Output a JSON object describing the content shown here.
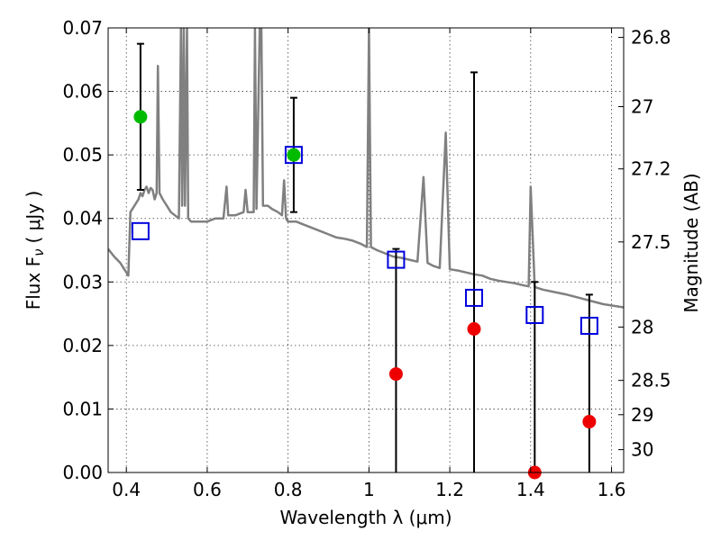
{
  "chart_data": {
    "type": "scatter",
    "xlabel": "Wavelength  λ (μm)",
    "ylabel": "Flux  F",
    "ylabel_sub": "ν",
    "ylabel_unit": "( μJy )",
    "y2label": "Magnitude (AB)",
    "xlim": [
      0.355,
      1.63
    ],
    "ylim": [
      0.0,
      0.07
    ],
    "grid": true,
    "x_ticks": [
      0.4,
      0.6,
      0.8,
      1.0,
      1.2,
      1.4,
      1.6
    ],
    "x_tick_labels": [
      "0.4",
      "0.6",
      "0.8",
      "1",
      "1.2",
      "1.4",
      "1.6"
    ],
    "y_ticks": [
      0.0,
      0.01,
      0.02,
      0.03,
      0.04,
      0.05,
      0.06,
      0.07
    ],
    "y_tick_labels": [
      "0.00",
      "0.01",
      "0.02",
      "0.03",
      "0.04",
      "0.05",
      "0.06",
      "0.07"
    ],
    "y2_ticks": [
      {
        "label": "26.8",
        "flux": 0.0685
      },
      {
        "label": "27",
        "flux": 0.0576
      },
      {
        "label": "27.2",
        "flux": 0.0478
      },
      {
        "label": "27.5",
        "flux": 0.0363
      },
      {
        "label": "28",
        "flux": 0.0229
      },
      {
        "label": "28.5",
        "flux": 0.0145
      },
      {
        "label": "29",
        "flux": 0.0091
      },
      {
        "label": "30",
        "flux": 0.0036
      }
    ],
    "colors": {
      "model": "#808080",
      "detection": "#00bb00",
      "upper_limit": "#ee0000",
      "model_band": "#0000dd",
      "errorbar": "#000000"
    },
    "series": [
      {
        "marker": "line",
        "points": [
          [
            0.355,
            0.0352
          ],
          [
            0.37,
            0.034
          ],
          [
            0.385,
            0.033
          ],
          [
            0.395,
            0.032
          ],
          [
            0.4,
            0.0315
          ],
          [
            0.405,
            0.031
          ],
          [
            0.41,
            0.041
          ],
          [
            0.42,
            0.042
          ],
          [
            0.43,
            0.043
          ],
          [
            0.435,
            0.044
          ],
          [
            0.44,
            0.0435
          ],
          [
            0.445,
            0.0445
          ],
          [
            0.45,
            0.045
          ],
          [
            0.455,
            0.044
          ],
          [
            0.46,
            0.0448
          ],
          [
            0.465,
            0.0445
          ],
          [
            0.47,
            0.043
          ],
          [
            0.475,
            0.044
          ],
          [
            0.478,
            0.064
          ],
          [
            0.482,
            0.044
          ],
          [
            0.49,
            0.043
          ],
          [
            0.5,
            0.042
          ],
          [
            0.51,
            0.041
          ],
          [
            0.52,
            0.0405
          ],
          [
            0.53,
            0.04
          ],
          [
            0.535,
            0.07
          ],
          [
            0.538,
            0.042
          ],
          [
            0.542,
            0.07
          ],
          [
            0.545,
            0.042
          ],
          [
            0.55,
            0.07
          ],
          [
            0.553,
            0.04
          ],
          [
            0.56,
            0.0395
          ],
          [
            0.58,
            0.0395
          ],
          [
            0.6,
            0.0395
          ],
          [
            0.62,
            0.04
          ],
          [
            0.64,
            0.04
          ],
          [
            0.648,
            0.045
          ],
          [
            0.652,
            0.0405
          ],
          [
            0.67,
            0.0405
          ],
          [
            0.69,
            0.041
          ],
          [
            0.695,
            0.0445
          ],
          [
            0.7,
            0.041
          ],
          [
            0.715,
            0.041
          ],
          [
            0.718,
            0.07
          ],
          [
            0.722,
            0.0415
          ],
          [
            0.73,
            0.07
          ],
          [
            0.734,
            0.07
          ],
          [
            0.738,
            0.042
          ],
          [
            0.75,
            0.042
          ],
          [
            0.76,
            0.0415
          ],
          [
            0.775,
            0.041
          ],
          [
            0.785,
            0.0405
          ],
          [
            0.79,
            0.046
          ],
          [
            0.795,
            0.04
          ],
          [
            0.8,
            0.0395
          ],
          [
            0.82,
            0.0395
          ],
          [
            0.84,
            0.039
          ],
          [
            0.86,
            0.0385
          ],
          [
            0.88,
            0.038
          ],
          [
            0.9,
            0.0375
          ],
          [
            0.92,
            0.037
          ],
          [
            0.94,
            0.0368
          ],
          [
            0.96,
            0.0365
          ],
          [
            0.98,
            0.036
          ],
          [
            0.995,
            0.0355
          ],
          [
            1.0,
            0.07
          ],
          [
            1.005,
            0.0355
          ],
          [
            1.02,
            0.035
          ],
          [
            1.04,
            0.0345
          ],
          [
            1.06,
            0.034
          ],
          [
            1.08,
            0.0338
          ],
          [
            1.1,
            0.0335
          ],
          [
            1.12,
            0.0332
          ],
          [
            1.135,
            0.0465
          ],
          [
            1.145,
            0.033
          ],
          [
            1.16,
            0.0325
          ],
          [
            1.175,
            0.0322
          ],
          [
            1.19,
            0.0535
          ],
          [
            1.2,
            0.032
          ],
          [
            1.22,
            0.0318
          ],
          [
            1.24,
            0.0315
          ],
          [
            1.26,
            0.0312
          ],
          [
            1.28,
            0.031
          ],
          [
            1.3,
            0.0305
          ],
          [
            1.32,
            0.0302
          ],
          [
            1.34,
            0.03
          ],
          [
            1.36,
            0.0298
          ],
          [
            1.38,
            0.0295
          ],
          [
            1.395,
            0.0293
          ],
          [
            1.4,
            0.045
          ],
          [
            1.41,
            0.0292
          ],
          [
            1.43,
            0.0288
          ],
          [
            1.46,
            0.0284
          ],
          [
            1.49,
            0.028
          ],
          [
            1.52,
            0.0275
          ],
          [
            1.55,
            0.027
          ],
          [
            1.58,
            0.0265
          ],
          [
            1.61,
            0.0262
          ],
          [
            1.63,
            0.026
          ]
        ]
      },
      {
        "marker": "circle",
        "color_key": "detection",
        "points": [
          {
            "x": 0.435,
            "y": 0.056,
            "yerr": [
              0.0445,
              0.0675
            ]
          },
          {
            "x": 0.814,
            "y": 0.05,
            "yerr": [
              0.041,
              0.059
            ]
          }
        ]
      },
      {
        "marker": "circle",
        "color_key": "upper_limit",
        "points": [
          {
            "x": 1.067,
            "y": 0.0155,
            "yerr": [
              0.0,
              0.0352
            ]
          },
          {
            "x": 1.26,
            "y": 0.0226,
            "yerr": [
              0.0,
              0.063
            ]
          },
          {
            "x": 1.41,
            "y": 0.0,
            "yerr": [
              0.0,
              0.03
            ]
          },
          {
            "x": 1.545,
            "y": 0.008,
            "yerr": [
              0.0,
              0.028
            ]
          }
        ]
      },
      {
        "marker": "square",
        "color_key": "model_band",
        "points": [
          {
            "x": 0.435,
            "y": 0.038
          },
          {
            "x": 0.814,
            "y": 0.05
          },
          {
            "x": 1.067,
            "y": 0.0335
          },
          {
            "x": 1.26,
            "y": 0.0275
          },
          {
            "x": 1.41,
            "y": 0.0248
          },
          {
            "x": 1.545,
            "y": 0.0231
          }
        ]
      }
    ]
  }
}
